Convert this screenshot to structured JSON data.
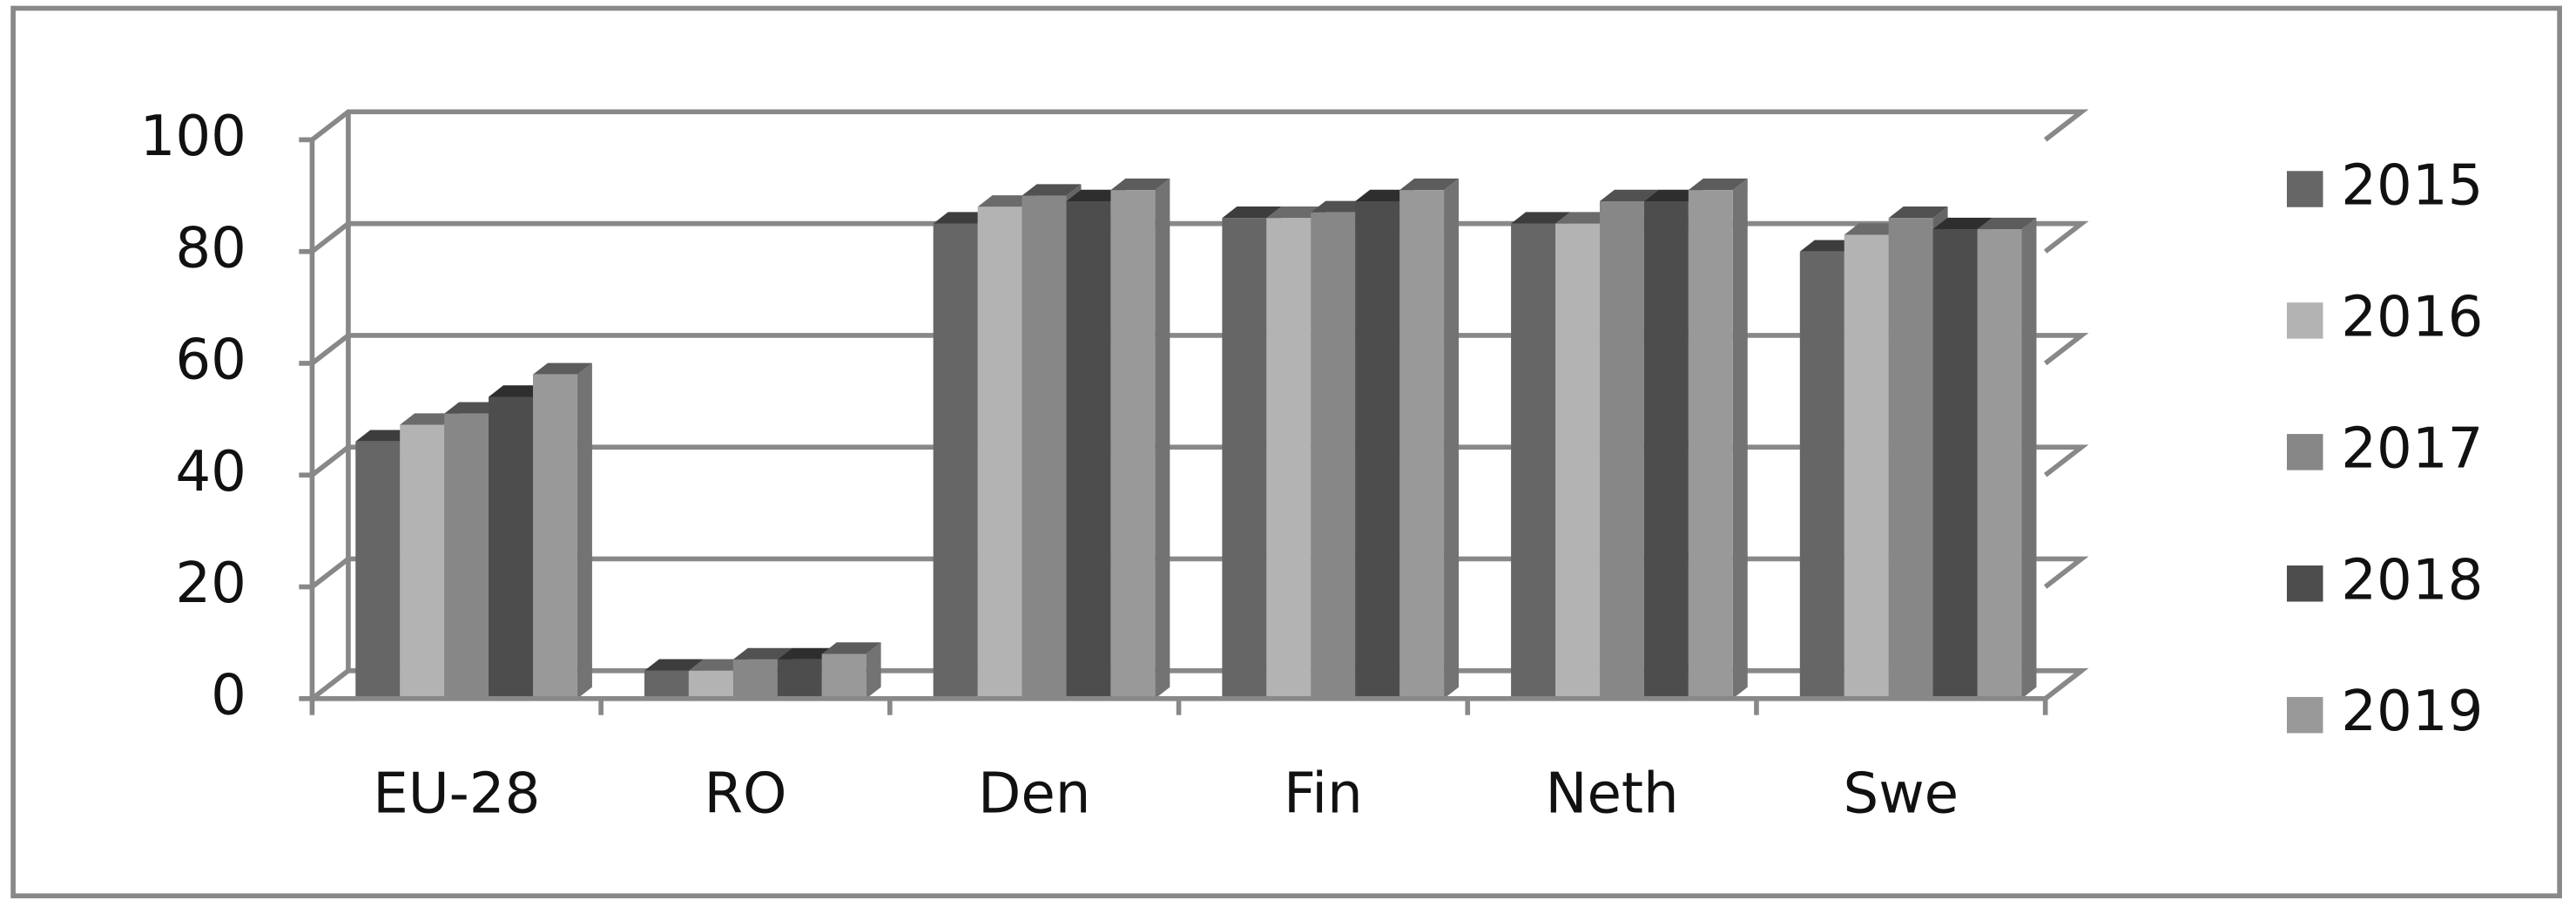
{
  "chart_data": {
    "type": "bar3d",
    "categories": [
      "EU-28",
      "RO",
      "Den",
      "Fin",
      "Neth",
      "Swe"
    ],
    "series": [
      {
        "name": "2015",
        "color": "#666666",
        "values": [
          46,
          5,
          85,
          86,
          85,
          80
        ]
      },
      {
        "name": "2016",
        "color": "#b3b3b3",
        "values": [
          49,
          5,
          88,
          86,
          85,
          83
        ]
      },
      {
        "name": "2017",
        "color": "#878787",
        "values": [
          51,
          7,
          90,
          87,
          89,
          86
        ]
      },
      {
        "name": "2018",
        "color": "#4d4d4d",
        "values": [
          54,
          7,
          89,
          89,
          89,
          84
        ]
      },
      {
        "name": "2019",
        "color": "#999999",
        "values": [
          58,
          8,
          91,
          91,
          91,
          84
        ]
      }
    ],
    "ylim": [
      0,
      100
    ],
    "yticks": [
      0,
      20,
      40,
      60,
      80,
      100
    ],
    "grid": true,
    "legend": "right"
  }
}
